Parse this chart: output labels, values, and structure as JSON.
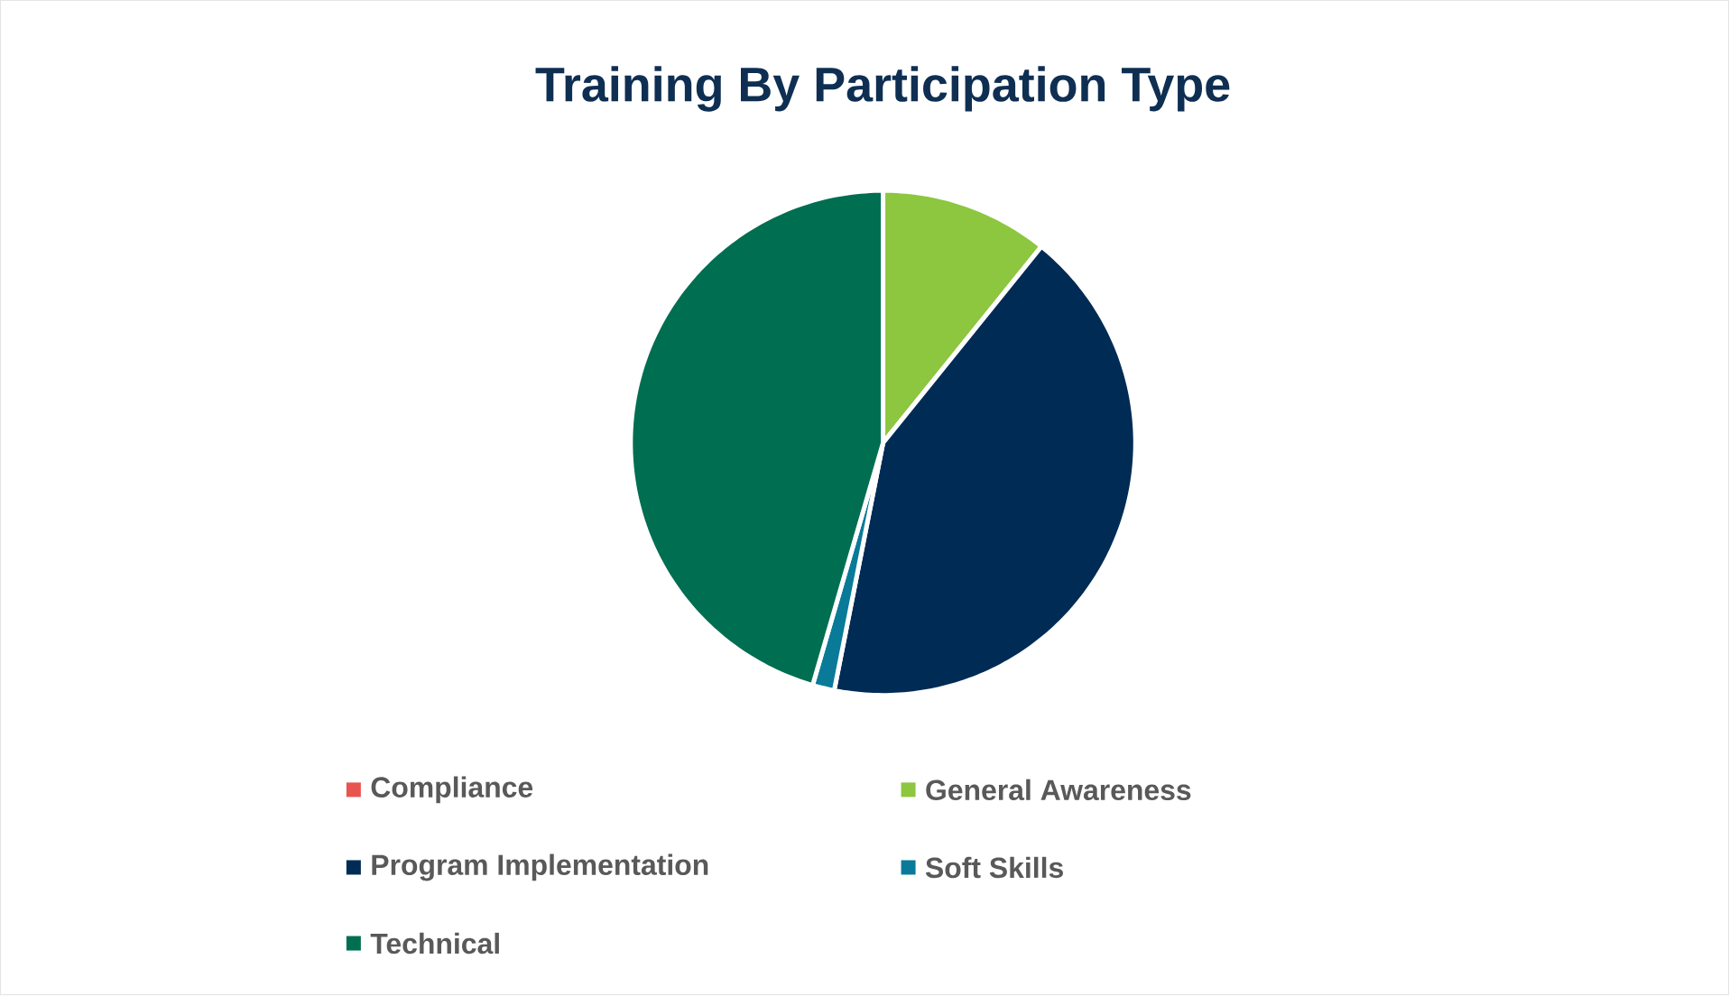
{
  "chart_data": {
    "type": "pie",
    "title": "Training By Participation Type",
    "categories": [
      "Compliance",
      "General Awareness",
      "Program Implementation",
      "Soft Skills",
      "Technical"
    ],
    "values": [
      0,
      10.8,
      42.3,
      1.4,
      45.5
    ],
    "colors": [
      "#e8554e",
      "#8dc63f",
      "#002b55",
      "#0a7a99",
      "#006e51"
    ],
    "legend": "bottom"
  }
}
